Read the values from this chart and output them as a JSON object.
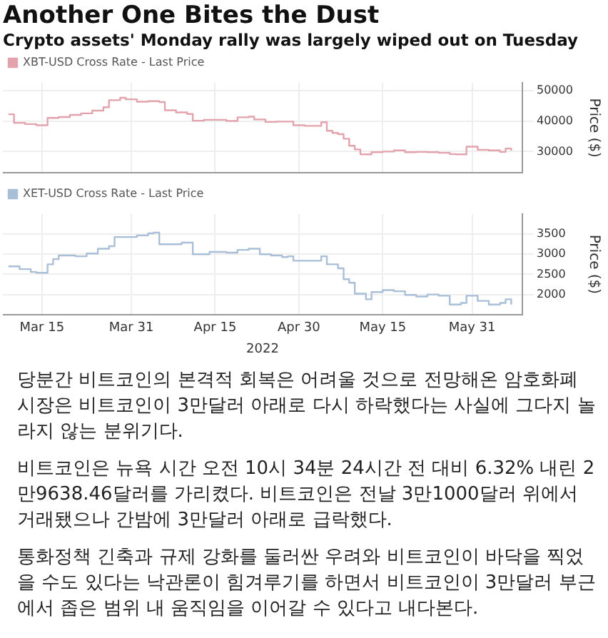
{
  "chart_data": [
    {
      "type": "step",
      "title": "Another One Bites the Dust",
      "subtitle": "Crypto assets' Monday rally was largely wiped out on Tuesday",
      "ylabel": "Price ($)",
      "legend": "top left",
      "grid": true,
      "tick_labels": "y",
      "xlim": [
        "2022-03-08",
        "2022-06-09"
      ],
      "xticks": [
        {
          "value": "2022-03-15",
          "label": null
        },
        {
          "value": "2022-03-31",
          "label": null
        },
        {
          "value": "2022-04-15",
          "label": null
        },
        {
          "value": "2022-04-30",
          "label": null
        },
        {
          "value": "2022-05-15",
          "label": null
        },
        {
          "value": "2022-05-31",
          "label": null
        }
      ],
      "ylim": [
        23000,
        52500
      ],
      "yticks": [
        30000,
        40000,
        50000
      ],
      "series": [
        {
          "name": "XBT-USD Cross Rate - Last Price",
          "color": "#e3a3ad",
          "x": [
            "2022-03-09",
            "2022-03-10",
            "2022-03-12",
            "2022-03-14",
            "2022-03-16",
            "2022-03-18",
            "2022-03-20",
            "2022-03-22",
            "2022-03-24",
            "2022-03-26",
            "2022-03-27",
            "2022-03-29",
            "2022-03-30",
            "2022-04-01",
            "2022-04-03",
            "2022-04-05",
            "2022-04-06",
            "2022-04-08",
            "2022-04-10",
            "2022-04-11",
            "2022-04-13",
            "2022-04-15",
            "2022-04-17",
            "2022-04-19",
            "2022-04-21",
            "2022-04-22",
            "2022-04-24",
            "2022-04-26",
            "2022-04-28",
            "2022-04-29",
            "2022-05-01",
            "2022-05-03",
            "2022-05-04",
            "2022-05-05",
            "2022-05-06",
            "2022-05-07",
            "2022-05-08",
            "2022-05-09",
            "2022-05-10",
            "2022-05-11",
            "2022-05-13",
            "2022-05-15",
            "2022-05-17",
            "2022-05-19",
            "2022-05-21",
            "2022-05-23",
            "2022-05-25",
            "2022-05-27",
            "2022-05-28",
            "2022-05-30",
            "2022-06-01",
            "2022-06-03",
            "2022-06-05",
            "2022-06-06",
            "2022-06-07"
          ],
          "values": [
            42200,
            39400,
            39000,
            38600,
            41000,
            41300,
            42000,
            42500,
            43400,
            44500,
            46800,
            47600,
            47100,
            46300,
            46500,
            46200,
            43500,
            42800,
            42300,
            40100,
            40400,
            40400,
            40000,
            41200,
            41400,
            40500,
            39700,
            39800,
            39800,
            38600,
            38400,
            38400,
            39600,
            36800,
            36100,
            35700,
            34200,
            31900,
            30700,
            29100,
            29800,
            30000,
            30400,
            29800,
            29900,
            29800,
            29600,
            29200,
            29100,
            31600,
            30600,
            30400,
            29900,
            31000,
            30300
          ]
        }
      ]
    },
    {
      "type": "step",
      "xlabel": "2022",
      "ylabel": "Price ($)",
      "legend": "top left",
      "grid": true,
      "xlim": [
        "2022-03-08",
        "2022-06-09"
      ],
      "xticks": [
        {
          "value": "2022-03-15",
          "label": "Mar 15"
        },
        {
          "value": "2022-03-31",
          "label": "Mar 31"
        },
        {
          "value": "2022-04-15",
          "label": "Apr 15"
        },
        {
          "value": "2022-04-30",
          "label": "Apr 30"
        },
        {
          "value": "2022-05-15",
          "label": "May 15"
        },
        {
          "value": "2022-05-31",
          "label": "May 31"
        }
      ],
      "ylim": [
        1500,
        4000
      ],
      "yticks": [
        2000,
        2500,
        3000,
        3500
      ],
      "series": [
        {
          "name": "XET-USD Cross Rate - Last Price",
          "color": "#a9bfd8",
          "x": [
            "2022-03-09",
            "2022-03-11",
            "2022-03-13",
            "2022-03-14",
            "2022-03-16",
            "2022-03-17",
            "2022-03-18",
            "2022-03-21",
            "2022-03-23",
            "2022-03-25",
            "2022-03-27",
            "2022-03-28",
            "2022-03-30",
            "2022-04-01",
            "2022-04-03",
            "2022-04-04",
            "2022-04-05",
            "2022-04-07",
            "2022-04-09",
            "2022-04-11",
            "2022-04-14",
            "2022-04-17",
            "2022-04-19",
            "2022-04-21",
            "2022-04-23",
            "2022-04-25",
            "2022-04-27",
            "2022-04-28",
            "2022-04-29",
            "2022-05-02",
            "2022-05-04",
            "2022-05-05",
            "2022-05-07",
            "2022-05-08",
            "2022-05-09",
            "2022-05-10",
            "2022-05-12",
            "2022-05-13",
            "2022-05-15",
            "2022-05-17",
            "2022-05-19",
            "2022-05-21",
            "2022-05-23",
            "2022-05-25",
            "2022-05-27",
            "2022-05-29",
            "2022-05-30",
            "2022-06-01",
            "2022-06-03",
            "2022-06-05",
            "2022-06-06",
            "2022-06-07"
          ],
          "values": [
            2700,
            2630,
            2560,
            2540,
            2750,
            2880,
            2970,
            2950,
            3020,
            3140,
            3200,
            3430,
            3430,
            3470,
            3520,
            3540,
            3250,
            3250,
            3290,
            3000,
            3060,
            3040,
            3110,
            3140,
            3000,
            2970,
            2930,
            2950,
            2840,
            2840,
            2950,
            2750,
            2650,
            2380,
            2290,
            2020,
            1880,
            2060,
            2110,
            2080,
            1990,
            1950,
            2000,
            1970,
            1750,
            1790,
            1970,
            1840,
            1750,
            1790,
            1880,
            1750
          ]
        }
      ],
      "annotations": [
        "당분간 비트코인의 본격적 회복은 어려울 것으로 전망해온 암호화폐 시장은 비트코인이 3만달러 아래로 다시 하락했다는 사실에 그다지 놀라지 않는 분위기다.",
        "비트코인은 뉴욕 시간 오전 10시 34분 24시간 전 대비 6.32% 내린 2만9638.46달러를 가리켰다. 비트코인은 전날 3만1000달러 위에서 거래됐으나 간밤에 3만달러 아래로 급락했다.",
        "통화정책 긴축과 규제 강화를 둘러싼 우려와 비트코인이 바닥을 찍었을 수도 있다는 낙관론이 힘겨루기를 하면서 비트코인이 3만달러 부근에서 좁은 범위 내 움직임을 이어갈 수 있다고 내다본다."
      ]
    }
  ]
}
